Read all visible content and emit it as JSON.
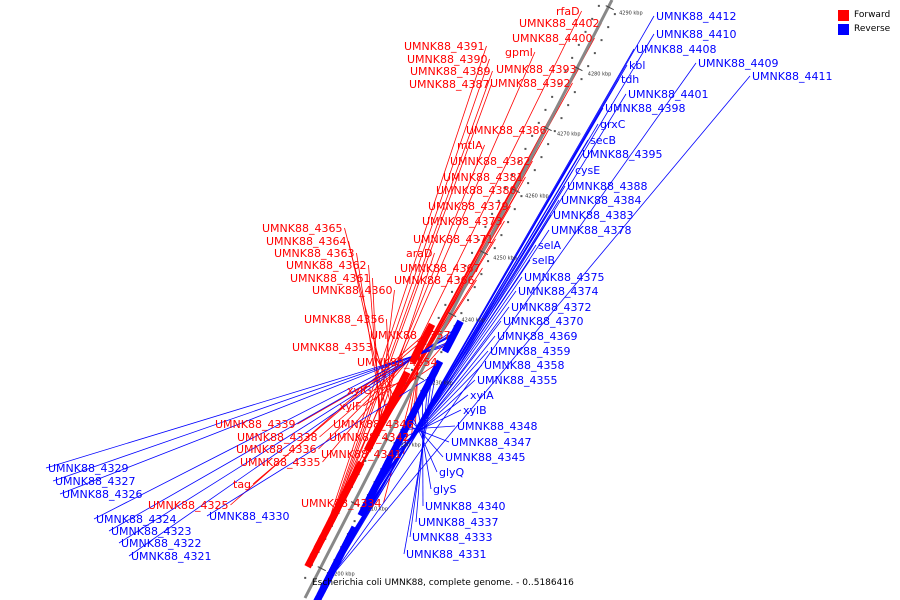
{
  "caption": "Escherichia coli UMNK88, complete genome. - 0..5186416",
  "legend": [
    {
      "label": "Forward",
      "color": "#ff0000"
    },
    {
      "label": "Reverse",
      "color": "#0000ff"
    }
  ],
  "colors": {
    "forward": "#ff0000",
    "reverse": "#0000ff",
    "backbone": "#888888"
  },
  "kbp_ticks": [
    "4200 kbp",
    "4210 kbp",
    "4220 kbp",
    "4230 kbp",
    "4240 kbp",
    "4250 kbp",
    "4260 kbp",
    "4270 kbp",
    "4280 kbp",
    "4290 kbp"
  ],
  "forward_genes": [
    "rfaD",
    "UMNK88_4402",
    "UMNK88_4400",
    "gpmI",
    "UMNK88_4391",
    "UMNK88_4390",
    "UMNK88_4389",
    "UMNK88_4387",
    "UMNK88_4393",
    "UMNK88_4392",
    "UMNK88_4386",
    "mtlA",
    "UMNK88_4382",
    "UMNK88_4381",
    "UMNK88_4380",
    "UMNK88_4379",
    "UMNK88_4373",
    "UMNK88_4365",
    "UMNK88_4364",
    "UMNK88_4363",
    "UMNK88_4362",
    "UMNK88_4361",
    "UMNK88_4360",
    "UMNK88_4371",
    "araD",
    "UMNK88_4367",
    "UMNK88_4366",
    "UMNK88_4356",
    "UMNK88_4357",
    "UMNK88_4353",
    "UMNK88_4354",
    "xylG",
    "xylF",
    "UMNK88_4339",
    "UMNK88_4338",
    "UMNK88_4336",
    "UMNK88_4335",
    "UMNK88_4346",
    "UMNK88_4342",
    "UMNK88_4341",
    "tag",
    "UMNK88_4334",
    "UMNK88_4325"
  ],
  "reverse_genes": [
    "UMNK88_4412",
    "UMNK88_4410",
    "UMNK88_4408",
    "UMNK88_4409",
    "UMNK88_4411",
    "kbl",
    "tdh",
    "UMNK88_4401",
    "UMNK88_4398",
    "grxC",
    "secB",
    "UMNK88_4395",
    "cysE",
    "UMNK88_4388",
    "UMNK88_4384",
    "UMNK88_4383",
    "UMNK88_4378",
    "selA",
    "selB",
    "UMNK88_4375",
    "UMNK88_4374",
    "UMNK88_4372",
    "UMNK88_4370",
    "UMNK88_4369",
    "UMNK88_4359",
    "UMNK88_4358",
    "UMNK88_4355",
    "xylA",
    "xylB",
    "UMNK88_4348",
    "UMNK88_4347",
    "UMNK88_4345",
    "glyQ",
    "glyS",
    "UMNK88_4340",
    "UMNK88_4337",
    "UMNK88_4333",
    "UMNK88_4331",
    "UMNK88_4329",
    "UMNK88_4327",
    "UMNK88_4326",
    "UMNK88_4324",
    "UMNK88_4330",
    "UMNK88_4323",
    "UMNK88_4322",
    "UMNK88_4321"
  ]
}
